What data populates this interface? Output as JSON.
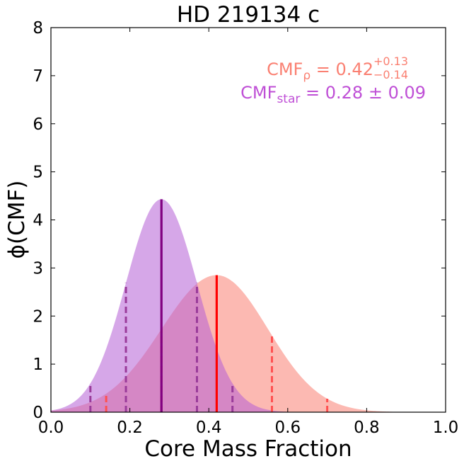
{
  "chart_data": {
    "type": "area",
    "title": "HD 219134 c",
    "xlabel": "Core Mass Fraction",
    "ylabel": "ϕ(CMF)",
    "xlim": [
      0.0,
      1.0
    ],
    "ylim": [
      0,
      8
    ],
    "xticks": [
      "0.0",
      "0.2",
      "0.4",
      "0.6",
      "0.8",
      "1.0"
    ],
    "yticks": [
      "0",
      "1",
      "2",
      "3",
      "4",
      "5",
      "6",
      "7",
      "8"
    ],
    "grid": false,
    "series": [
      {
        "key": "rho",
        "color": "#fa8072",
        "fill_color": "#fa8072",
        "median": 0.42,
        "peak": 2.85,
        "sigma_minus": 0.14,
        "sigma_plus": 0.13,
        "one_sigma": [
          0.28,
          0.56
        ],
        "two_sigma": [
          0.14,
          0.7
        ],
        "median_line_color": "#ff0000",
        "sigma_line_color": "#ff5050"
      },
      {
        "key": "star",
        "color": "#bf4fd6",
        "fill_color": "#b45ed6",
        "median": 0.28,
        "peak": 4.43,
        "sigma": 0.09,
        "one_sigma": [
          0.19,
          0.37
        ],
        "two_sigma": [
          0.1,
          0.46
        ],
        "median_line_color": "#800080",
        "sigma_line_color": "#9a3b9a"
      }
    ],
    "annotations": {
      "rho": {
        "prefix": "CMF",
        "subscript": "ρ",
        "mid": " = 0.42",
        "sup": "+0.13",
        "sub": "−0.14",
        "color": "#fa8072"
      },
      "star": {
        "prefix": "CMF",
        "subscript": "star",
        "mid": " = 0.28 ± 0.09",
        "color": "#bf4fd6"
      }
    }
  }
}
